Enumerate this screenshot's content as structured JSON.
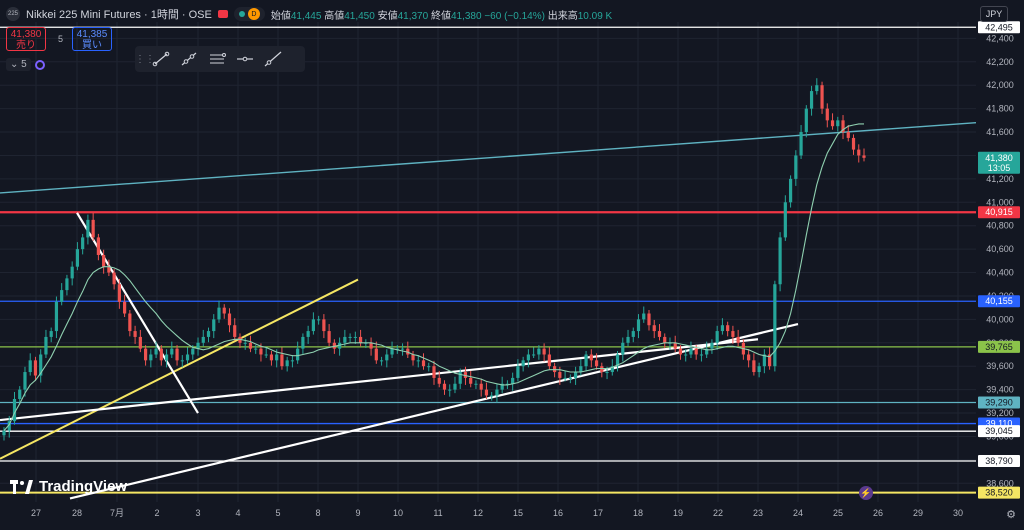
{
  "header": {
    "symbol_badge": "225",
    "title": "Nikkei 225 Mini Futures · 1時間 · OSE",
    "currency_badge": "D",
    "ohlc": {
      "open_label": "始値",
      "open": "41,445",
      "high_label": "高値",
      "high": "41,450",
      "low_label": "安値",
      "low": "41,370",
      "close_label": "終値",
      "close": "41,380",
      "change": "−60 (−0.14%)",
      "volume_label": "出来高",
      "volume": "10.09 K"
    }
  },
  "trade": {
    "sell_price": "41,380",
    "sell_label": "売り",
    "spread": "5",
    "buy_price": "41,385",
    "buy_label": "買い"
  },
  "indicator_toggle": {
    "count": "5"
  },
  "currency": "JPY",
  "logo": "TradingView",
  "colors": {
    "bg": "#131722",
    "grid": "#1f2431",
    "up": "#26a69a",
    "down": "#ef5350",
    "red_line": "#f23645",
    "blue_line": "#2962ff",
    "green_line": "#8bc34a",
    "teal_line": "#5fb3c2",
    "yellow_line": "#f5e663",
    "white_line": "#ffffff",
    "ma_line": "#8fd0b0"
  },
  "chart_data": {
    "type": "candlestick",
    "title": "Nikkei 225 Mini Futures · 1時間 · OSE",
    "xlabel": "",
    "ylabel": "",
    "ylim": [
      38440,
      42540
    ],
    "x_ticks": [
      "27",
      "28",
      "7月",
      "2",
      "3",
      "4",
      "5",
      "8",
      "9",
      "10",
      "11",
      "12",
      "15",
      "16",
      "17",
      "18",
      "19",
      "22",
      "23",
      "24",
      "25",
      "26",
      "29",
      "30"
    ],
    "y_ticks": [
      38600,
      38800,
      39000,
      39200,
      39400,
      39600,
      39800,
      40000,
      40200,
      40400,
      40600,
      40800,
      41000,
      41200,
      41400,
      41600,
      41800,
      42000,
      42200,
      42400
    ],
    "grid": true,
    "last_price": "41,380",
    "countdown": "13:05",
    "price_lines": [
      {
        "label": "42,495",
        "value": 42495,
        "color": "white"
      },
      {
        "label": "40,915",
        "value": 40915,
        "color": "red"
      },
      {
        "label": "40,155",
        "value": 40155,
        "color": "blue"
      },
      {
        "label": "39,765",
        "value": 39765,
        "color": "green"
      },
      {
        "label": "39,290",
        "value": 39290,
        "color": "teal"
      },
      {
        "label": "39,110",
        "value": 39110,
        "color": "blue"
      },
      {
        "label": "39,045",
        "value": 39045,
        "color": "white"
      },
      {
        "label": "38,790",
        "value": 38790,
        "color": "white"
      },
      {
        "label": "38,520",
        "value": 38520,
        "color": "yellow"
      }
    ],
    "trendlines": [
      {
        "color": "teal",
        "from": [
          "26",
          41080
        ],
        "to": [
          "25 end",
          41680
        ]
      },
      {
        "color": "yellow",
        "from": [
          "26",
          38810
        ],
        "to": [
          "9",
          40340
        ]
      },
      {
        "color": "white",
        "from": [
          "26",
          39140
        ],
        "to": [
          "23",
          39830
        ]
      },
      {
        "color": "white",
        "from": [
          "27 end",
          38470
        ],
        "to": [
          "24",
          39960
        ]
      },
      {
        "color": "white",
        "from": [
          "28",
          40910
        ],
        "to": [
          "3",
          39200
        ]
      }
    ],
    "closes": [
      39050,
      39130,
      39320,
      39400,
      39550,
      39650,
      39520,
      39700,
      39850,
      39900,
      40150,
      40250,
      40350,
      40450,
      40600,
      40700,
      40850,
      40700,
      40550,
      40450,
      40400,
      40300,
      40150,
      40050,
      39900,
      39850,
      39750,
      39650,
      39700,
      39750,
      39650,
      39700,
      39750,
      39650,
      39650,
      39700,
      39750,
      39800,
      39850,
      39900,
      40000,
      40100,
      40050,
      39950,
      39850,
      39800,
      39800,
      39750,
      39750,
      39700,
      39700,
      39650,
      39700,
      39600,
      39650,
      39650,
      39750,
      39850,
      39900,
      40000,
      40000,
      39900,
      39800,
      39750,
      39800,
      39850,
      39850,
      39850,
      39800,
      39800,
      39750,
      39650,
      39650,
      39700,
      39750,
      39750,
      39750,
      39700,
      39650,
      39650,
      39600,
      39600,
      39500,
      39450,
      39400,
      39400,
      39450,
      39550,
      39500,
      39450,
      39450,
      39400,
      39350,
      39350,
      39400,
      39450,
      39450,
      39500,
      39600,
      39650,
      39700,
      39700,
      39750,
      39700,
      39600,
      39550,
      39500,
      39500,
      39500,
      39550,
      39600,
      39700,
      39650,
      39600,
      39550,
      39550,
      39600,
      39700,
      39800,
      39850,
      39900,
      40000,
      40050,
      39950,
      39900,
      39850,
      39800,
      39800,
      39750,
      39700,
      39700,
      39750,
      39700,
      39700,
      39750,
      39800,
      39900,
      39950,
      39900,
      39850,
      39800,
      39700,
      39650,
      39550,
      39600,
      39700,
      39600,
      40300,
      40700,
      41000,
      41200,
      41400,
      41600,
      41800,
      41950,
      42000,
      41800,
      41700,
      41650,
      41700,
      41600,
      41550,
      41450,
      41400,
      41380
    ],
    "ma": [
      39050,
      39100,
      39200,
      39280,
      39370,
      39440,
      39480,
      39540,
      39610,
      39680,
      39770,
      39870,
      39960,
      40050,
      40150,
      40240,
      40340,
      40400,
      40430,
      40450,
      40450,
      40440,
      40420,
      40380,
      40330,
      40270,
      40210,
      40150,
      40100,
      40050,
      39990,
      39940,
      39900,
      39860,
      39820,
      39790,
      39760,
      39750,
      39740,
      39750,
      39770,
      39790,
      39810,
      39820,
      39830,
      39830,
      39820,
      39810,
      39790,
      39770,
      39760,
      39740,
      39720,
      39710,
      39700,
      39690,
      39690,
      39700,
      39710,
      39720,
      39740,
      39750,
      39760,
      39770,
      39780,
      39790,
      39800,
      39800,
      39800,
      39800,
      39800,
      39790,
      39780,
      39760,
      39750,
      39740,
      39730,
      39720,
      39700,
      39690,
      39670,
      39650,
      39630,
      39600,
      39580,
      39560,
      39540,
      39530,
      39520,
      39510,
      39500,
      39490,
      39470,
      39460,
      39450,
      39440,
      39440,
      39450,
      39460,
      39480,
      39500,
      39520,
      39540,
      39560,
      39570,
      39570,
      39570,
      39560,
      39550,
      39550,
      39550,
      39560,
      39570,
      39580,
      39580,
      39580,
      39590,
      39610,
      39630,
      39660,
      39690,
      39720,
      39750,
      39770,
      39780,
      39790,
      39800,
      39800,
      39800,
      39790,
      39780,
      39770,
      39760,
      39750,
      39740,
      39740,
      39750,
      39760,
      39770,
      39770,
      39760,
      39750,
      39740,
      39720,
      39700,
      39690,
      39680,
      39730,
      39800,
      39900,
      40050,
      40250,
      40480,
      40720,
      40950,
      41150,
      41300,
      41420,
      41500,
      41580,
      41620,
      41650,
      41660,
      41670,
      41670
    ]
  }
}
